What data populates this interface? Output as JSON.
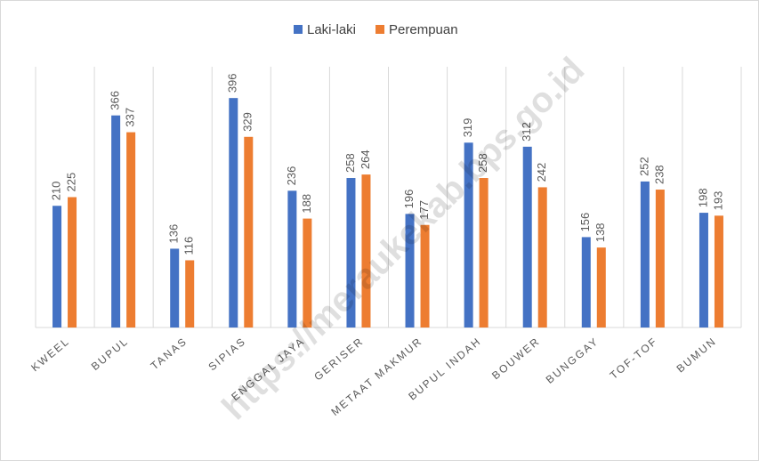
{
  "chart_data": {
    "type": "bar",
    "categories": [
      "KWEEL",
      "BUPUL",
      "TANAS",
      "SIPIAS",
      "ENGGAL JAYA",
      "GERISER",
      "METAAT MAKMUR",
      "BUPUL INDAH",
      "BOUWER",
      "BUNGGAY",
      "TOF-TOF",
      "BUMUN"
    ],
    "series": [
      {
        "name": "Laki-laki",
        "color": "#4472c4",
        "values": [
          210,
          366,
          136,
          396,
          236,
          258,
          196,
          319,
          312,
          156,
          252,
          198
        ]
      },
      {
        "name": "Perempuan",
        "color": "#ed7d31",
        "values": [
          225,
          337,
          116,
          329,
          188,
          264,
          177,
          258,
          242,
          138,
          238,
          193
        ]
      }
    ],
    "ylim": [
      0,
      450
    ],
    "legend": "top",
    "watermark": "https://meraukekab.bps.go.id"
  }
}
